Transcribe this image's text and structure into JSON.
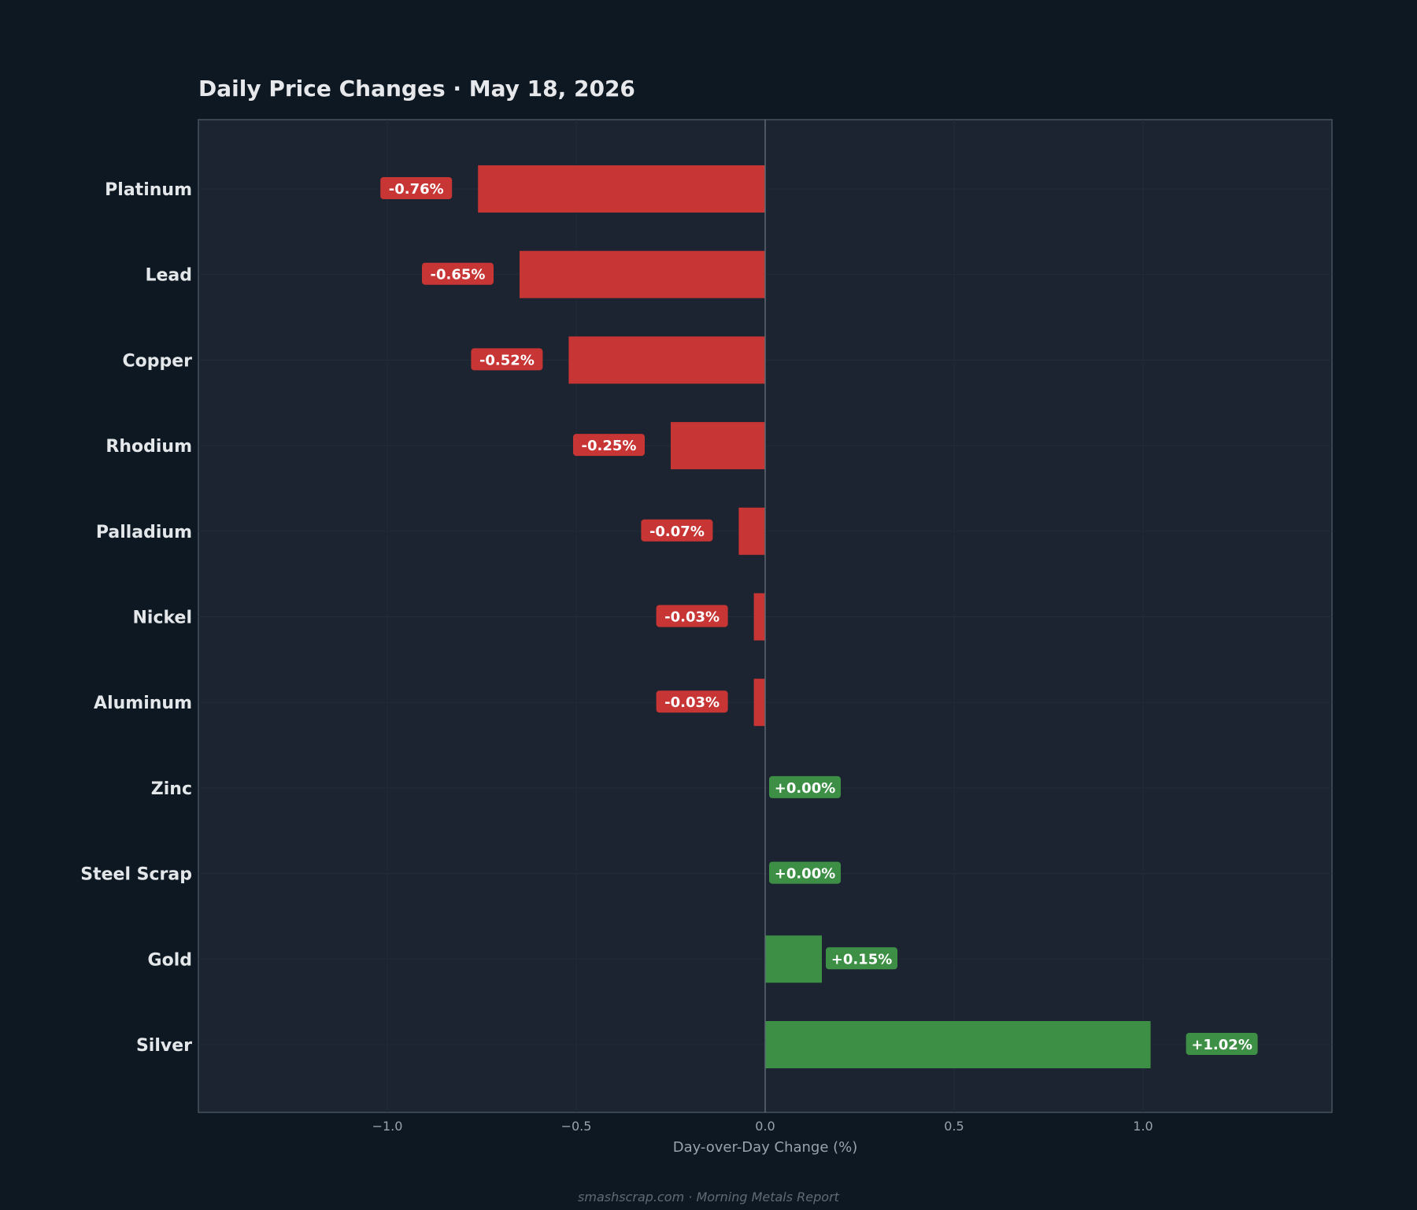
{
  "chart_data": {
    "type": "bar",
    "orientation": "horizontal",
    "title": "Daily Price Changes  ·  May 18, 2026",
    "xlabel": "Day-over-Day Change (%)",
    "ylabel": "",
    "xlim": [
      -1.5,
      1.5
    ],
    "xticks": [
      -1.0,
      -0.5,
      0.0,
      0.5,
      1.0
    ],
    "xtick_labels": [
      "−1.0",
      "−0.5",
      "0.0",
      "0.5",
      "1.0"
    ],
    "grid": true,
    "categories": [
      "Platinum",
      "Lead",
      "Copper",
      "Rhodium",
      "Palladium",
      "Nickel",
      "Aluminum",
      "Zinc",
      "Steel Scrap",
      "Gold",
      "Silver"
    ],
    "values": [
      -0.76,
      -0.65,
      -0.52,
      -0.25,
      -0.07,
      -0.03,
      -0.03,
      0.0,
      0.0,
      0.15,
      1.02
    ],
    "value_labels": [
      "-0.76%",
      "-0.65%",
      "-0.52%",
      "-0.25%",
      "-0.07%",
      "-0.03%",
      "-0.03%",
      "+0.00%",
      "+0.00%",
      "+0.15%",
      "+1.02%"
    ],
    "colors": {
      "negative": "#c73535",
      "positive": "#3d8f45",
      "plot_background": "#1b2430",
      "page_background": "#0e1822",
      "frame": "#46525e"
    }
  },
  "footer": "smashscrap.com  ·  Morning Metals Report"
}
